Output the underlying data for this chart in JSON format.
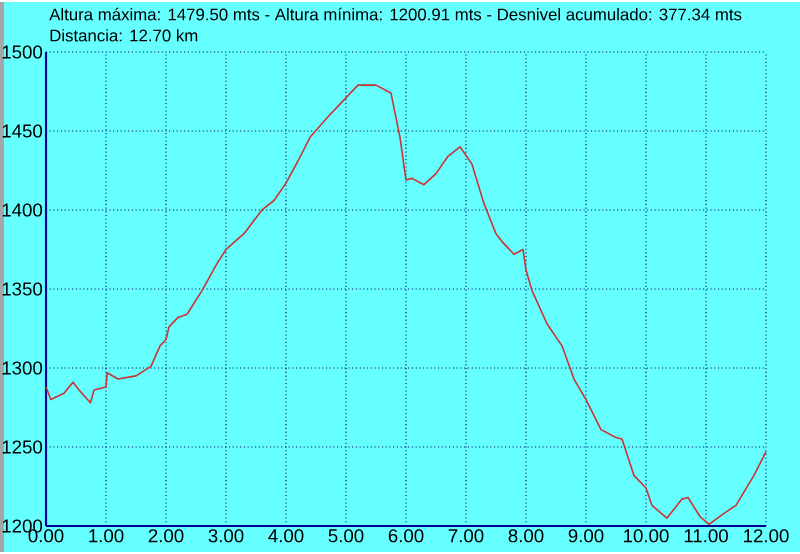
{
  "chart_data": {
    "type": "line",
    "title": "Altura máxima: 1479.50 mts - Altura mínima: 1200.91 mts - Desnivel acumulado: 377.34 mts",
    "subtitle": "Distancia: 12.70 km",
    "x": [
      0.0,
      0.08,
      0.3,
      0.45,
      0.55,
      0.74,
      0.8,
      1.0,
      1.02,
      1.2,
      1.5,
      1.75,
      1.9,
      2.0,
      2.05,
      2.2,
      2.35,
      2.6,
      2.85,
      3.0,
      3.3,
      3.6,
      3.8,
      4.0,
      4.2,
      4.4,
      4.7,
      4.9,
      5.0,
      5.2,
      5.5,
      5.75,
      5.9,
      6.0,
      6.1,
      6.3,
      6.5,
      6.7,
      6.9,
      7.1,
      7.3,
      7.5,
      7.6,
      7.8,
      7.95,
      8.0,
      8.1,
      8.35,
      8.6,
      8.8,
      9.0,
      9.25,
      9.5,
      9.6,
      9.8,
      10.0,
      10.1,
      10.35,
      10.6,
      10.7,
      10.9,
      11.05,
      11.3,
      11.5,
      11.8,
      12.0
    ],
    "series": [
      {
        "color": "#cc3333",
        "values": [
          1288,
          1280,
          1284,
          1291,
          1286,
          1278,
          1286,
          1288,
          1297,
          1293,
          1295,
          1301,
          1314,
          1318,
          1326,
          1332,
          1334,
          1349,
          1366,
          1375,
          1385,
          1400,
          1406,
          1417,
          1431,
          1446,
          1459,
          1467,
          1471,
          1479,
          1479,
          1474,
          1446,
          1419,
          1420,
          1416,
          1423,
          1434,
          1440,
          1429,
          1404,
          1385,
          1380,
          1372,
          1375,
          1362,
          1349,
          1328,
          1314,
          1293,
          1280,
          1261,
          1256,
          1255,
          1232,
          1224,
          1213,
          1205,
          1217,
          1218,
          1206,
          1201,
          1208,
          1213,
          1232,
          1247
        ]
      }
    ],
    "xlim": [
      0,
      12
    ],
    "ylim": [
      1200,
      1500
    ],
    "xticks": [
      {
        "value": 0,
        "label": "0.00"
      },
      {
        "value": 1,
        "label": "1.00"
      },
      {
        "value": 2,
        "label": "2.00"
      },
      {
        "value": 3,
        "label": "3.00"
      },
      {
        "value": 4,
        "label": "4.00"
      },
      {
        "value": 5,
        "label": "5.00"
      },
      {
        "value": 6,
        "label": "6.00"
      },
      {
        "value": 7,
        "label": "7.00"
      },
      {
        "value": 8,
        "label": "8.00"
      },
      {
        "value": 9,
        "label": "9.00"
      },
      {
        "value": 10,
        "label": "10.00"
      },
      {
        "value": 11,
        "label": "11.00"
      },
      {
        "value": 12,
        "label": "12.00"
      }
    ],
    "yticks": [
      1200,
      1250,
      1300,
      1350,
      1400,
      1450,
      1500
    ],
    "grid": true,
    "marker": "none",
    "line_style": "solid"
  }
}
